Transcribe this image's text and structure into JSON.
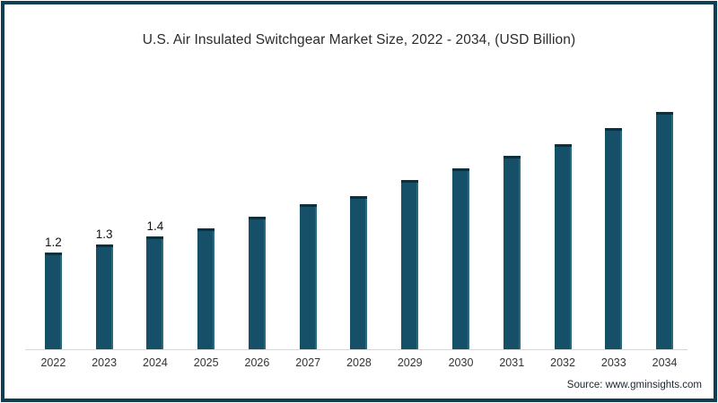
{
  "title": "U.S. Air Insulated Switchgear Market Size, 2022 - 2034,  (USD Billion)",
  "source": "Source: www.gminsights.com",
  "colors": {
    "frame_border": "#0e3e54",
    "bar": "#164f68",
    "bar_top_cap": "#0a3140",
    "bar_right_highlight": "#2a6a80",
    "axis_line": "#d8d8d8",
    "title_text": "#2b2b2b",
    "tick_text": "#333333",
    "source_text": "#1c2430"
  },
  "chart_data": {
    "type": "bar",
    "title": "U.S. Air Insulated Switchgear Market Size, 2022 - 2034,  (USD Billion)",
    "categories": [
      "2022",
      "2023",
      "2024",
      "2025",
      "2026",
      "2027",
      "2028",
      "2029",
      "2030",
      "2031",
      "2032",
      "2033",
      "2034"
    ],
    "values": [
      1.2,
      1.3,
      1.4,
      1.5,
      1.65,
      1.8,
      1.9,
      2.1,
      2.25,
      2.4,
      2.55,
      2.75,
      2.95
    ],
    "data_labels": [
      "1.2",
      "1.3",
      "1.4",
      "",
      "",
      "",
      "",
      "",
      "",
      "",
      "",
      "",
      ""
    ],
    "units": "USD Billion",
    "xlabel": "",
    "ylabel": "",
    "ylim": [
      0,
      3.3
    ],
    "grid": false,
    "legend": false,
    "y_axis_visible": false,
    "source": "Source: www.gminsights.com"
  }
}
